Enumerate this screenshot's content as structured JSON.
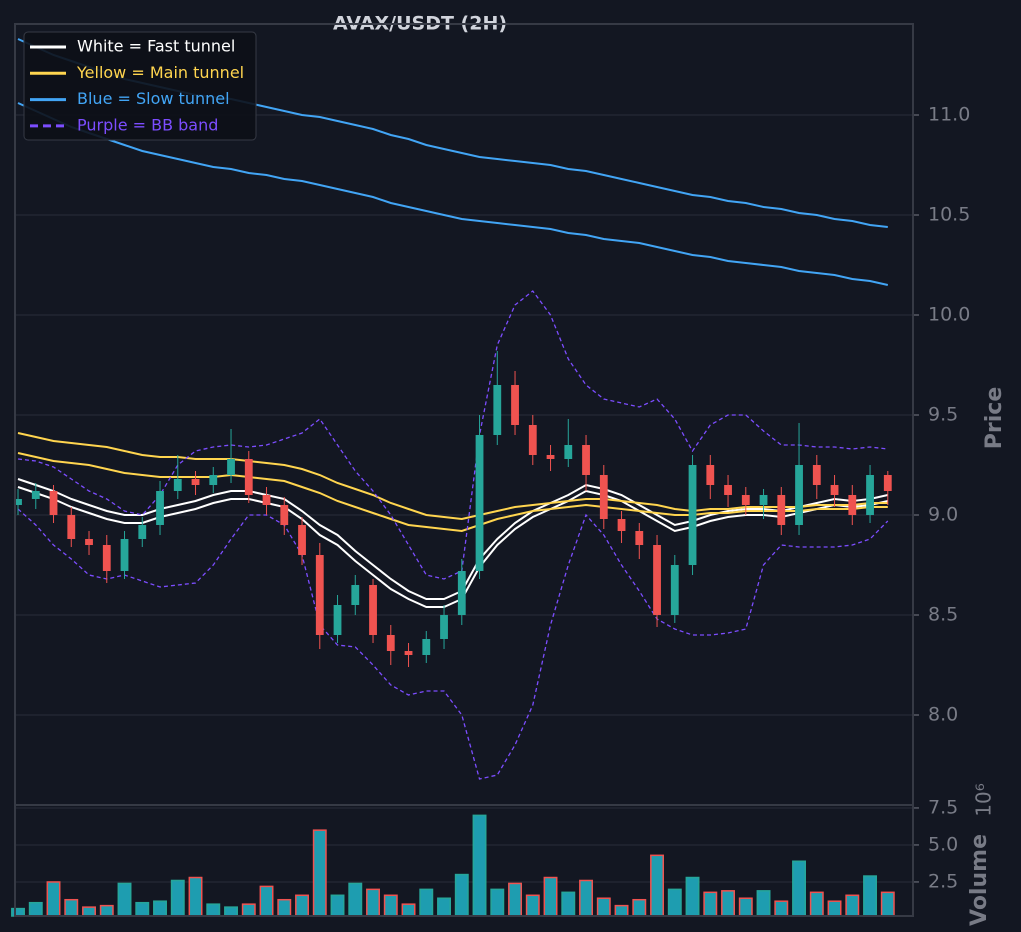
{
  "chart_data": {
    "type": "candlestick",
    "title": "AVAX/USDT (2H)",
    "y_label": "Price",
    "volume_label": "Volume",
    "volume_multiplier": "10⁶",
    "xlim": [
      -0.17,
      50.42
    ],
    "ylim": [
      7.55,
      11.455
    ],
    "yticks": [
      {
        "value": 8.0,
        "label": "8.0"
      },
      {
        "value": 8.5,
        "label": "8.5"
      },
      {
        "value": 9.0,
        "label": "9.0"
      },
      {
        "value": 9.5,
        "label": "9.5"
      },
      {
        "value": 10.0,
        "label": "10.0"
      },
      {
        "value": 10.5,
        "label": "10.5"
      },
      {
        "value": 11.0,
        "label": "11.0"
      }
    ],
    "volume_ylim": [
      0.2,
      7.7
    ],
    "volume_yticks": [
      2.5,
      {
        "value": 5.0,
        "label": "5.0"
      },
      7.5
    ],
    "grid": true,
    "up_color": "#26a69a",
    "down_color": "#ef5350",
    "open": [
      9.05,
      9.08,
      9.12,
      9.0,
      8.88,
      8.85,
      8.72,
      8.88,
      8.95,
      9.12,
      9.18,
      9.15,
      9.2,
      9.28,
      9.1,
      9.05,
      8.95,
      8.8,
      8.4,
      8.55,
      8.65,
      8.4,
      8.32,
      8.3,
      8.38,
      8.5,
      8.72,
      9.4,
      9.65,
      9.45,
      9.3,
      9.28,
      9.35,
      9.2,
      8.98,
      8.92,
      8.85,
      8.5,
      8.75,
      9.25,
      9.15,
      9.1,
      9.05,
      9.1,
      8.95,
      9.25,
      9.15,
      9.1,
      9.0,
      9.2
    ],
    "high": [
      9.13,
      9.16,
      9.15,
      9.04,
      8.92,
      8.9,
      8.92,
      8.99,
      9.17,
      9.3,
      9.22,
      9.24,
      9.43,
      9.32,
      9.14,
      9.09,
      8.99,
      8.86,
      8.6,
      8.7,
      8.68,
      8.45,
      8.36,
      8.42,
      8.55,
      8.78,
      9.5,
      9.82,
      9.72,
      9.5,
      9.35,
      9.48,
      9.4,
      9.25,
      9.02,
      8.96,
      8.9,
      8.8,
      9.3,
      9.3,
      9.2,
      9.14,
      9.13,
      9.14,
      9.46,
      9.3,
      9.2,
      9.15,
      9.25,
      9.22
    ],
    "low": [
      9.0,
      9.03,
      8.96,
      8.84,
      8.8,
      8.66,
      8.68,
      8.84,
      8.9,
      9.08,
      9.1,
      9.11,
      9.16,
      9.06,
      9.0,
      8.9,
      8.75,
      8.33,
      8.36,
      8.5,
      8.36,
      8.25,
      8.24,
      8.26,
      8.33,
      8.45,
      8.68,
      9.35,
      9.4,
      9.25,
      9.22,
      9.24,
      9.12,
      8.93,
      8.86,
      8.78,
      8.44,
      8.46,
      8.7,
      9.08,
      9.04,
      9.0,
      8.98,
      8.9,
      8.9,
      9.08,
      9.04,
      8.95,
      8.96,
      9.05
    ],
    "close": [
      9.08,
      9.12,
      9.0,
      8.88,
      8.85,
      8.72,
      8.88,
      8.95,
      9.12,
      9.18,
      9.15,
      9.2,
      9.28,
      9.1,
      9.05,
      8.95,
      8.8,
      8.4,
      8.55,
      8.65,
      8.4,
      8.32,
      8.3,
      8.38,
      8.5,
      8.72,
      9.4,
      9.65,
      9.45,
      9.3,
      9.28,
      9.35,
      9.2,
      8.98,
      8.92,
      8.85,
      8.5,
      8.75,
      9.25,
      9.15,
      9.1,
      9.05,
      9.1,
      8.95,
      9.25,
      9.15,
      9.1,
      9.0,
      9.2,
      9.12
    ],
    "volume": [
      0.7,
      1.1,
      2.5,
      1.3,
      0.8,
      0.9,
      2.4,
      1.1,
      1.2,
      2.6,
      2.8,
      1.0,
      0.8,
      1.0,
      2.2,
      1.3,
      1.6,
      6.0,
      1.6,
      2.4,
      2.0,
      1.6,
      1.0,
      2.0,
      1.4,
      3.0,
      7.0,
      2.0,
      2.4,
      1.6,
      2.8,
      1.8,
      2.6,
      1.4,
      0.9,
      1.3,
      4.3,
      2.0,
      2.8,
      1.8,
      1.9,
      1.4,
      1.9,
      1.2,
      3.9,
      1.8,
      1.2,
      1.6,
      2.9,
      1.8
    ],
    "series": [
      {
        "name": "White = Fast tunnel",
        "color": "#ffffff",
        "dashed": false,
        "lines": [
          [
            9.18,
            9.15,
            9.12,
            9.08,
            9.05,
            9.02,
            9.0,
            9.0,
            9.03,
            9.05,
            9.07,
            9.1,
            9.12,
            9.12,
            9.1,
            9.08,
            9.02,
            8.95,
            8.9,
            8.82,
            8.75,
            8.68,
            8.62,
            8.58,
            8.58,
            8.62,
            8.78,
            8.88,
            8.96,
            9.02,
            9.06,
            9.1,
            9.15,
            9.13,
            9.1,
            9.05,
            9.0,
            8.95,
            8.97,
            9.0,
            9.02,
            9.03,
            9.03,
            9.02,
            9.04,
            9.06,
            9.08,
            9.07,
            9.08,
            9.1
          ],
          [
            9.14,
            9.11,
            9.08,
            9.04,
            9.01,
            8.98,
            8.96,
            8.96,
            8.99,
            9.01,
            9.03,
            9.06,
            9.08,
            9.08,
            9.06,
            9.04,
            8.98,
            8.9,
            8.85,
            8.77,
            8.7,
            8.63,
            8.58,
            8.54,
            8.54,
            8.58,
            8.74,
            8.85,
            8.93,
            8.99,
            9.03,
            9.07,
            9.12,
            9.1,
            9.07,
            9.02,
            8.97,
            8.92,
            8.94,
            8.97,
            8.99,
            9.0,
            9.0,
            8.99,
            9.01,
            9.03,
            9.05,
            9.04,
            9.05,
            9.07
          ]
        ]
      },
      {
        "name": "Yellow = Main tunnel",
        "color": "#ffd54f",
        "dashed": false,
        "lines": [
          [
            9.41,
            9.39,
            9.37,
            9.36,
            9.35,
            9.34,
            9.32,
            9.3,
            9.29,
            9.29,
            9.28,
            9.28,
            9.28,
            9.27,
            9.26,
            9.25,
            9.23,
            9.2,
            9.16,
            9.13,
            9.1,
            9.06,
            9.03,
            9.0,
            8.99,
            8.98,
            9.0,
            9.02,
            9.04,
            9.05,
            9.06,
            9.07,
            9.08,
            9.08,
            9.07,
            9.06,
            9.05,
            9.03,
            9.02,
            9.03,
            9.03,
            9.04,
            9.04,
            9.04,
            9.04,
            9.05,
            9.05,
            9.05,
            9.06,
            9.06
          ],
          [
            9.31,
            9.29,
            9.27,
            9.26,
            9.25,
            9.23,
            9.21,
            9.2,
            9.19,
            9.19,
            9.19,
            9.19,
            9.2,
            9.19,
            9.18,
            9.17,
            9.14,
            9.11,
            9.07,
            9.04,
            9.01,
            8.98,
            8.95,
            8.94,
            8.93,
            8.92,
            8.95,
            8.98,
            9.0,
            9.02,
            9.03,
            9.04,
            9.05,
            9.04,
            9.03,
            9.02,
            9.01,
            9.0,
            9.0,
            9.01,
            9.01,
            9.02,
            9.02,
            9.02,
            9.02,
            9.03,
            9.03,
            9.03,
            9.04,
            9.04
          ]
        ]
      },
      {
        "name": "Blue = Slow tunnel",
        "color": "#42a5f5",
        "dashed": false,
        "lines": [
          [
            11.38,
            11.34,
            11.3,
            11.27,
            11.24,
            11.21,
            11.18,
            11.16,
            11.14,
            11.12,
            11.1,
            11.09,
            11.08,
            11.06,
            11.04,
            11.02,
            11.0,
            10.99,
            10.97,
            10.95,
            10.93,
            10.9,
            10.88,
            10.85,
            10.83,
            10.81,
            10.79,
            10.78,
            10.77,
            10.76,
            10.75,
            10.73,
            10.72,
            10.7,
            10.68,
            10.66,
            10.64,
            10.62,
            10.6,
            10.59,
            10.57,
            10.56,
            10.54,
            10.53,
            10.51,
            10.5,
            10.48,
            10.47,
            10.45,
            10.44
          ],
          [
            11.06,
            11.02,
            10.98,
            10.94,
            10.91,
            10.88,
            10.85,
            10.82,
            10.8,
            10.78,
            10.76,
            10.74,
            10.73,
            10.71,
            10.7,
            10.68,
            10.67,
            10.65,
            10.63,
            10.61,
            10.59,
            10.56,
            10.54,
            10.52,
            10.5,
            10.48,
            10.47,
            10.46,
            10.45,
            10.44,
            10.43,
            10.41,
            10.4,
            10.38,
            10.37,
            10.36,
            10.34,
            10.32,
            10.3,
            10.29,
            10.27,
            10.26,
            10.25,
            10.24,
            10.22,
            10.21,
            10.2,
            10.18,
            10.17,
            10.15
          ]
        ]
      },
      {
        "name": "Purple = BB band",
        "color": "#7c4dff",
        "dashed": true,
        "lines": [
          [
            9.28,
            9.27,
            9.24,
            9.18,
            9.12,
            9.08,
            9.02,
            9.0,
            9.1,
            9.25,
            9.32,
            9.34,
            9.35,
            9.34,
            9.35,
            9.38,
            9.41,
            9.48,
            9.35,
            9.22,
            9.12,
            9.0,
            8.85,
            8.7,
            8.68,
            8.72,
            9.4,
            9.85,
            10.05,
            10.12,
            10.0,
            9.78,
            9.65,
            9.58,
            9.56,
            9.54,
            9.58,
            9.48,
            9.32,
            9.45,
            9.5,
            9.5,
            9.42,
            9.35,
            9.35,
            9.34,
            9.34,
            9.33,
            9.34,
            9.33
          ],
          [
            9.03,
            8.95,
            8.85,
            8.78,
            8.7,
            8.68,
            8.7,
            8.67,
            8.64,
            8.65,
            8.66,
            8.75,
            8.88,
            9.0,
            9.0,
            8.95,
            8.8,
            8.45,
            8.35,
            8.34,
            8.25,
            8.15,
            8.1,
            8.12,
            8.12,
            8.0,
            7.68,
            7.7,
            7.85,
            8.05,
            8.45,
            8.75,
            9.0,
            8.9,
            8.75,
            8.62,
            8.48,
            8.43,
            8.4,
            8.4,
            8.41,
            8.43,
            8.75,
            8.85,
            8.84,
            8.84,
            8.84,
            8.85,
            8.88,
            8.97
          ]
        ]
      }
    ]
  }
}
